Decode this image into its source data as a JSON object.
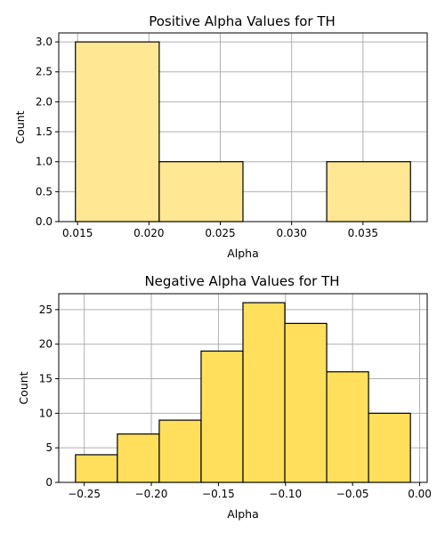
{
  "chart_data": [
    {
      "type": "bar",
      "title": "Positive Alpha Values for TH",
      "xlabel": "Alpha",
      "ylabel": "Count",
      "color": "#ffe793",
      "bin_edges": [
        0.01485,
        0.02072,
        0.02659,
        0.03246,
        0.03833
      ],
      "values": [
        3,
        1,
        0,
        1
      ],
      "xlim": [
        0.01368,
        0.0395
      ],
      "ylim": [
        0,
        3.15
      ],
      "xticks": [
        0.015,
        0.02,
        0.025,
        0.03,
        0.035
      ],
      "xtick_labels": [
        "0.015",
        "0.020",
        "0.025",
        "0.030",
        "0.035"
      ],
      "yticks": [
        0,
        0.5,
        1.0,
        1.5,
        2.0,
        2.5,
        3.0
      ],
      "ytick_labels": [
        "0.0",
        "0.5",
        "1.0",
        "1.5",
        "2.0",
        "2.5",
        "3.0"
      ],
      "grid": true
    },
    {
      "type": "bar",
      "title": "Negative Alpha Values for TH",
      "xlabel": "Alpha",
      "ylabel": "Count",
      "color": "#ffdf5c",
      "bin_edges": [
        -0.2565,
        -0.2253,
        -0.1941,
        -0.1629,
        -0.1317,
        -0.1005,
        -0.0693,
        -0.0381,
        -0.0069
      ],
      "values": [
        4,
        7,
        9,
        19,
        26,
        23,
        16,
        10
      ],
      "xlim": [
        -0.269,
        0.0056
      ],
      "ylim": [
        0,
        27.3
      ],
      "xticks": [
        -0.25,
        -0.2,
        -0.15,
        -0.1,
        -0.05,
        0.0
      ],
      "xtick_labels": [
        "−0.25",
        "−0.20",
        "−0.15",
        "−0.10",
        "−0.05",
        "0.00"
      ],
      "yticks": [
        0,
        5,
        10,
        15,
        20,
        25
      ],
      "ytick_labels": [
        "0",
        "5",
        "10",
        "15",
        "20",
        "25"
      ],
      "grid": true
    }
  ]
}
